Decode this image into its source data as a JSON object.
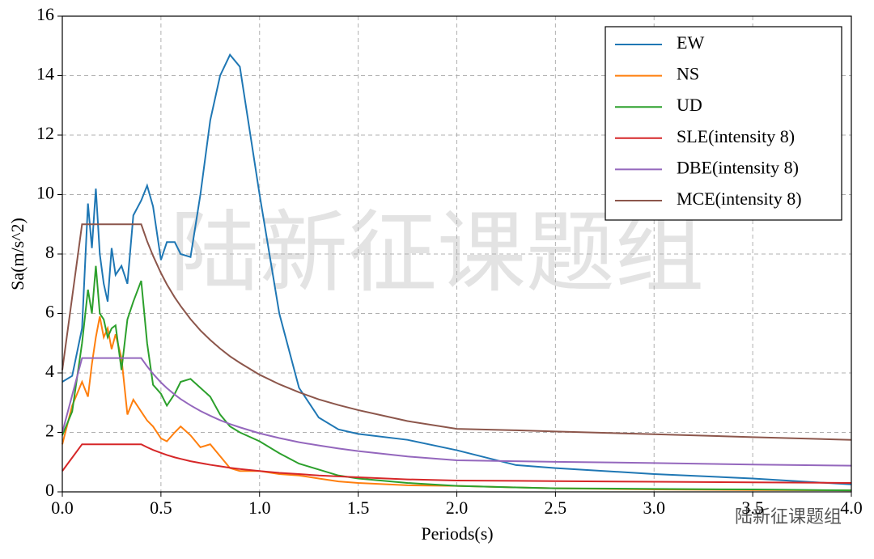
{
  "chart_data": {
    "type": "line",
    "xlabel": "Periods(s)",
    "ylabel": "Sa(m/s^2)",
    "watermark": "陆新征课题组",
    "credit": "陆新征课题组",
    "x": [
      0,
      0.05,
      0.1,
      0.13,
      0.15,
      0.17,
      0.19,
      0.21,
      0.23,
      0.25,
      0.27,
      0.3,
      0.33,
      0.36,
      0.4,
      0.43,
      0.46,
      0.5,
      0.53,
      0.57,
      0.6,
      0.65,
      0.7,
      0.75,
      0.8,
      0.85,
      0.9,
      1.0,
      1.1,
      1.2,
      1.3,
      1.4,
      1.5,
      1.75,
      2.0,
      2.3,
      2.5,
      3.0,
      3.5,
      4.0
    ],
    "series": [
      {
        "name": "EW",
        "color": "#1f77b4",
        "values": [
          3.7,
          3.9,
          5.5,
          9.7,
          8.2,
          10.2,
          8.0,
          7.0,
          6.4,
          8.2,
          7.3,
          7.6,
          7.0,
          9.3,
          9.8,
          10.3,
          9.6,
          7.8,
          8.4,
          8.4,
          8.0,
          7.9,
          10.0,
          12.5,
          14.0,
          14.7,
          14.3,
          10.0,
          6.0,
          3.5,
          2.5,
          2.1,
          1.95,
          1.75,
          1.4,
          0.9,
          0.8,
          0.6,
          0.45,
          0.25
        ]
      },
      {
        "name": "NS",
        "color": "#ff7f0e",
        "values": [
          1.6,
          2.9,
          3.7,
          3.2,
          4.3,
          5.2,
          5.9,
          5.2,
          5.5,
          4.8,
          5.3,
          4.5,
          2.6,
          3.1,
          2.7,
          2.4,
          2.2,
          1.8,
          1.7,
          2.0,
          2.2,
          1.9,
          1.5,
          1.6,
          1.2,
          0.8,
          0.7,
          0.7,
          0.6,
          0.55,
          0.45,
          0.35,
          0.3,
          0.22,
          0.2,
          0.15,
          0.12,
          0.08,
          0.06,
          0.05
        ]
      },
      {
        "name": "UD",
        "color": "#2ca02c",
        "values": [
          1.9,
          2.7,
          5.0,
          6.8,
          6.0,
          7.6,
          6.0,
          5.8,
          5.2,
          5.5,
          5.6,
          4.1,
          5.8,
          6.4,
          7.1,
          5.0,
          3.6,
          3.3,
          2.9,
          3.3,
          3.7,
          3.8,
          3.5,
          3.2,
          2.6,
          2.2,
          2.0,
          1.7,
          1.3,
          0.95,
          0.75,
          0.55,
          0.45,
          0.3,
          0.2,
          0.15,
          0.12,
          0.1,
          0.08,
          0.05
        ]
      },
      {
        "name": "SLE(intensity 8)",
        "color": "#d62728",
        "values": [
          0.7,
          1.15,
          1.6,
          1.6,
          1.6,
          1.6,
          1.6,
          1.6,
          1.6,
          1.6,
          1.6,
          1.6,
          1.6,
          1.6,
          1.6,
          1.5,
          1.41,
          1.31,
          1.24,
          1.16,
          1.11,
          1.03,
          0.97,
          0.91,
          0.86,
          0.81,
          0.77,
          0.7,
          0.64,
          0.6,
          0.55,
          0.52,
          0.49,
          0.42,
          0.38,
          0.37,
          0.36,
          0.34,
          0.32,
          0.3
        ]
      },
      {
        "name": "DBE(intensity 8)",
        "color": "#9467bd",
        "values": [
          2.0,
          3.25,
          4.5,
          4.5,
          4.5,
          4.5,
          4.5,
          4.5,
          4.5,
          4.5,
          4.5,
          4.5,
          4.5,
          4.5,
          4.5,
          4.22,
          3.97,
          3.68,
          3.49,
          3.27,
          3.12,
          2.91,
          2.72,
          2.56,
          2.41,
          2.28,
          2.17,
          1.97,
          1.81,
          1.67,
          1.56,
          1.46,
          1.37,
          1.19,
          1.06,
          1.03,
          1.01,
          0.97,
          0.92,
          0.88
        ]
      },
      {
        "name": "MCE(intensity 8)",
        "color": "#8c564b",
        "values": [
          4.1,
          6.55,
          9.0,
          9.0,
          9.0,
          9.0,
          9.0,
          9.0,
          9.0,
          9.0,
          9.0,
          9.0,
          9.0,
          9.0,
          9.0,
          8.43,
          7.94,
          7.36,
          6.98,
          6.54,
          6.25,
          5.81,
          5.43,
          5.11,
          4.82,
          4.56,
          4.34,
          3.94,
          3.62,
          3.35,
          3.11,
          2.92,
          2.75,
          2.38,
          2.12,
          2.07,
          2.03,
          1.94,
          1.84,
          1.75
        ]
      }
    ],
    "xlim": [
      0,
      4
    ],
    "ylim": [
      0,
      16
    ],
    "xticks": [
      {
        "value": 0,
        "label": "0.0"
      },
      0.5,
      {
        "value": 1,
        "label": "1.0"
      },
      1.5,
      {
        "value": 2,
        "label": "2.0"
      },
      2.5,
      {
        "value": 3,
        "label": "3.0"
      },
      3.5,
      {
        "value": 4,
        "label": "4.0"
      }
    ],
    "yticks": [
      0,
      2,
      4,
      6,
      8,
      10,
      12,
      14,
      16
    ],
    "grid": true,
    "legend": "upper right"
  }
}
